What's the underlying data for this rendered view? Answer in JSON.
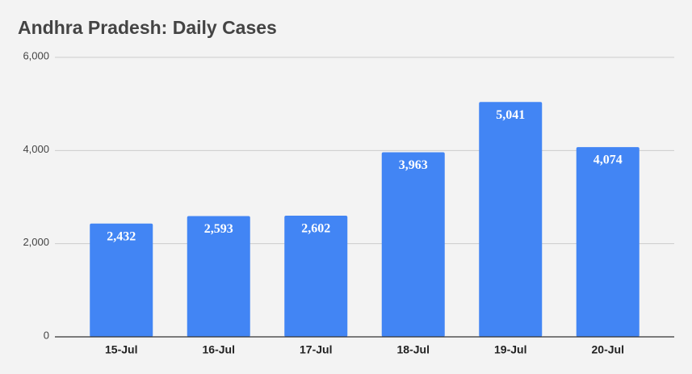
{
  "chart_data": {
    "type": "bar",
    "title": "Andhra Pradesh: Daily Cases",
    "categories": [
      "15-Jul",
      "16-Jul",
      "17-Jul",
      "18-Jul",
      "19-Jul",
      "20-Jul"
    ],
    "values": [
      2432,
      2593,
      2602,
      3963,
      5041,
      4074
    ],
    "value_labels": [
      "2,432",
      "2,593",
      "2,602",
      "3,963",
      "5,041",
      "4,074"
    ],
    "color": "#4285f4",
    "ylim": [
      0,
      6000
    ],
    "yticks": [
      0,
      {
        "value": 2000,
        "label": "2,000"
      },
      {
        "value": 4000,
        "label": "4,000"
      },
      {
        "value": 6000,
        "label": "6,000"
      }
    ],
    "grid": true
  }
}
